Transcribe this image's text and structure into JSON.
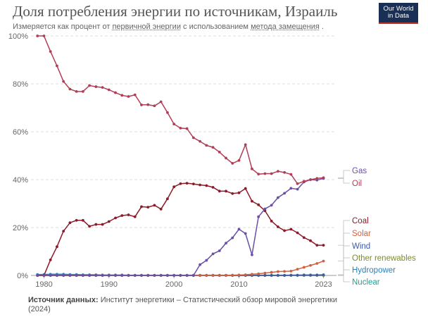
{
  "header": {
    "title": "Доля потребления энергии по источникам, Израиль",
    "subtitle_prefix": "Измеряется как процент от",
    "subtitle_link1": "первичной энергии",
    "subtitle_mid": "с использованием",
    "subtitle_link2": "метода замещения",
    "subtitle_end": ".",
    "logo_line1": "Our World",
    "logo_line2": "in Data"
  },
  "footer": {
    "source_label": "Источник данных:",
    "source_text": "Институт энергетики – Статистический обзор мировой энергетики (2024)"
  },
  "colors": {
    "oil": "#b13e57",
    "coal": "#8b1a2b",
    "gas": "#6a4fa5",
    "solar": "#d06140",
    "other": "#7a8c2c",
    "wind": "#3d5aa3",
    "hydro": "#2c7fb8",
    "nuclear": "#2a9d8f"
  },
  "chart_data": {
    "type": "line",
    "title": "Доля потребления энергии по источникам, Израиль",
    "xlabel": "",
    "ylabel": "",
    "xlim": [
      1978,
      2025
    ],
    "ylim": [
      0,
      100
    ],
    "x_ticks": [
      1980,
      1990,
      2000,
      2010,
      2023
    ],
    "y_ticks": [
      "0%",
      "20%",
      "40%",
      "60%",
      "80%",
      "100%"
    ],
    "y_tick_values": [
      0,
      20,
      40,
      60,
      80,
      100
    ],
    "grid": true,
    "x": [
      1979,
      1980,
      1981,
      1982,
      1983,
      1984,
      1985,
      1986,
      1987,
      1988,
      1989,
      1990,
      1991,
      1992,
      1993,
      1994,
      1995,
      1996,
      1997,
      1998,
      1999,
      2000,
      2001,
      2002,
      2003,
      2004,
      2005,
      2006,
      2007,
      2008,
      2009,
      2010,
      2011,
      2012,
      2013,
      2014,
      2015,
      2016,
      2017,
      2018,
      2019,
      2020,
      2021,
      2022,
      2023
    ],
    "series": [
      {
        "name": "Oil",
        "color_key": "oil",
        "values": [
          100,
          100,
          93.5,
          87.5,
          81,
          77.8,
          76.8,
          76.8,
          79.3,
          78.8,
          78.5,
          77.5,
          76.3,
          75.2,
          74.7,
          75.4,
          71.2,
          71.3,
          70.8,
          72.5,
          68,
          63.2,
          61.5,
          61.3,
          57.5,
          56,
          54.3,
          53.5,
          51.5,
          49,
          46.8,
          48,
          54.6,
          44.5,
          42.3,
          42.5,
          42.5,
          43.5,
          43,
          42.2,
          38.3,
          39.3,
          40,
          40.5,
          40.8
        ]
      },
      {
        "name": "Gas",
        "color_key": "gas",
        "values": [
          0,
          0,
          0,
          0,
          0,
          0,
          0,
          0,
          0,
          0,
          0,
          0,
          0,
          0,
          0,
          0,
          0,
          0,
          0,
          0,
          0,
          0,
          0,
          0,
          0,
          4.5,
          6.3,
          9,
          10.3,
          13.5,
          15.7,
          19.3,
          17.5,
          8.6,
          24.5,
          27.8,
          29.3,
          32.5,
          34.3,
          36.4,
          36,
          39,
          40,
          39.8,
          40.5
        ]
      },
      {
        "name": "Coal",
        "color_key": "coal",
        "values": [
          0,
          0,
          6.5,
          12,
          18.5,
          22,
          23,
          23,
          20.5,
          21.3,
          21.3,
          22.5,
          24,
          25,
          25.3,
          24.5,
          28.7,
          28.5,
          29.3,
          27.7,
          32,
          37,
          38.3,
          38.5,
          38.2,
          37.8,
          37.5,
          36.8,
          35.2,
          35.2,
          34.2,
          34.5,
          36.3,
          31,
          29.5,
          27,
          22.7,
          20.3,
          18.7,
          19.3,
          17.8,
          15.8,
          14.5,
          12.6,
          12.6
        ]
      },
      {
        "name": "Solar",
        "color_key": "solar",
        "values": [
          0,
          0,
          0,
          0,
          0,
          0,
          0,
          0,
          0,
          0,
          0,
          0,
          0,
          0,
          0,
          0,
          0,
          0,
          0,
          0,
          0,
          0,
          0,
          0,
          0,
          0,
          0,
          0,
          0,
          0,
          0.1,
          0.2,
          0.3,
          0.5,
          0.7,
          1,
          1.3,
          1.6,
          1.7,
          1.8,
          2.6,
          3.4,
          4.2,
          5,
          6
        ]
      },
      {
        "name": "Wind",
        "color_key": "wind",
        "values": [
          0,
          0,
          0,
          0,
          0,
          0,
          0,
          0,
          0,
          0,
          0,
          0,
          0,
          0,
          0,
          0,
          0,
          0,
          0,
          0,
          0,
          0,
          0,
          0,
          0,
          0,
          0,
          0,
          0,
          0,
          0,
          0,
          0,
          0,
          0,
          0,
          0,
          0,
          0,
          0.1,
          0.1,
          0.2,
          0.2,
          0.2,
          0.3
        ]
      },
      {
        "name": "Other renewables",
        "color_key": "other",
        "values": [
          0,
          0,
          0,
          0,
          0,
          0,
          0,
          0,
          0,
          0,
          0,
          0,
          0,
          0,
          0,
          0,
          0,
          0,
          0,
          0,
          0,
          0,
          0,
          0,
          0,
          0,
          0,
          0,
          0,
          0,
          0,
          0,
          0,
          0,
          0,
          0,
          0,
          0,
          0,
          0,
          0,
          0,
          0,
          0,
          0
        ]
      },
      {
        "name": "Hydropower",
        "color_key": "hydro",
        "values": [
          0.4,
          0.4,
          0.5,
          0.5,
          0.5,
          0.4,
          0.4,
          0.3,
          0.3,
          0.3,
          0.2,
          0.2,
          0.2,
          0.2,
          0.1,
          0.1,
          0.1,
          0.1,
          0.1,
          0.1,
          0.1,
          0.1,
          0.1,
          0.1,
          0.1,
          0.1,
          0.1,
          0.1,
          0.1,
          0.1,
          0.1,
          0.1,
          0.1,
          0.1,
          0.1,
          0.1,
          0.1,
          0.1,
          0.1,
          0.1,
          0.1,
          0.1,
          0.1,
          0.1,
          0.1
        ]
      },
      {
        "name": "Nuclear",
        "color_key": "nuclear",
        "values": [
          0,
          0,
          0,
          0,
          0,
          0,
          0,
          0,
          0,
          0,
          0,
          0,
          0,
          0,
          0,
          0,
          0,
          0,
          0,
          0,
          0,
          0,
          0,
          0,
          0,
          0,
          0,
          0,
          0,
          0,
          0,
          0,
          0,
          0,
          0,
          0,
          0,
          0,
          0,
          0,
          0,
          0,
          0,
          0,
          0
        ]
      }
    ],
    "legend": [
      {
        "label": "Gas",
        "color_key": "gas"
      },
      {
        "label": "Oil",
        "color_key": "oil"
      },
      {
        "label": "Coal",
        "color_key": "coal"
      },
      {
        "label": "Solar",
        "color_key": "solar"
      },
      {
        "label": "Wind",
        "color_key": "wind"
      },
      {
        "label": "Other renewables",
        "color_key": "other"
      },
      {
        "label": "Hydropower",
        "color_key": "hydro"
      },
      {
        "label": "Nuclear",
        "color_key": "nuclear"
      }
    ]
  }
}
